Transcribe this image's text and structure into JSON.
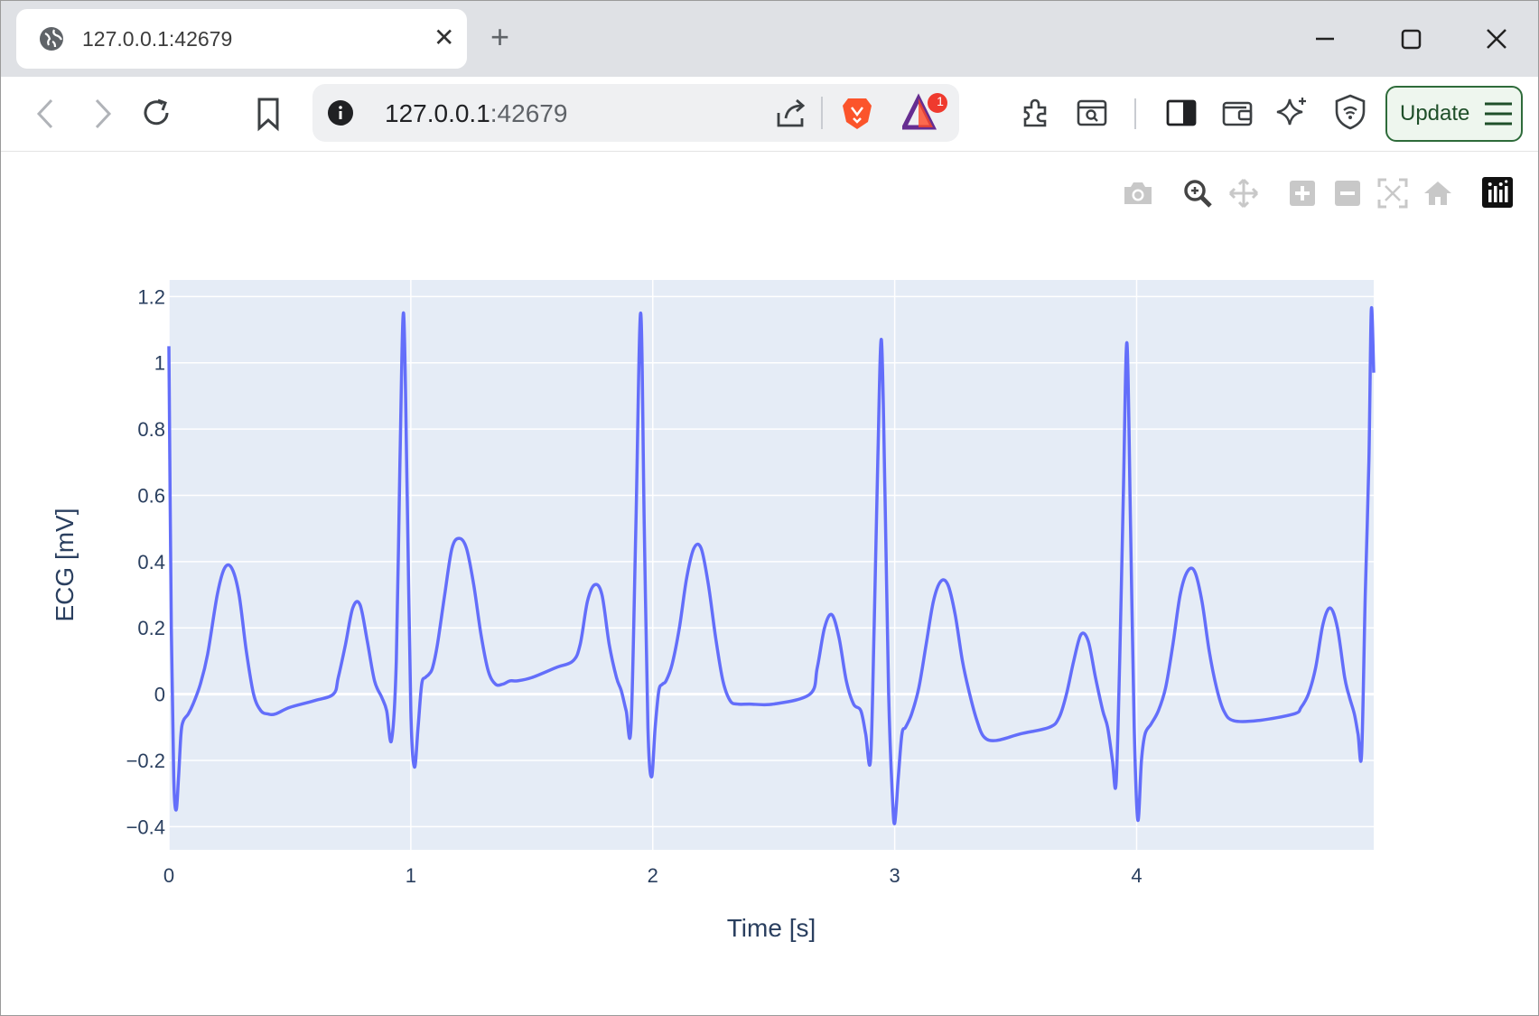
{
  "browser": {
    "tab_title": "127.0.0.1:42679",
    "url_host": "127.0.0.1",
    "url_port": ":42679",
    "notification_count": "1",
    "update_label": "Update"
  },
  "colors": {
    "plot_bg": "#e5ecf6",
    "line": "#636efa",
    "axis_text": "#2a3f5f",
    "grid": "#ffffff"
  },
  "icons": [
    "globe-icon",
    "close-icon",
    "plus-icon",
    "minimize-icon",
    "maximize-icon",
    "window-close-icon",
    "back-icon",
    "forward-icon",
    "reload-icon",
    "bookmark-icon",
    "info-icon",
    "share-icon",
    "brave-lion-icon",
    "rewards-triangle-icon",
    "extensions-icon",
    "leo-search-icon",
    "sidebar-icon",
    "wallet-icon",
    "ai-sparkle-icon",
    "vpn-shield-icon",
    "menu-icon",
    "camera-icon",
    "zoom-icon",
    "pan-icon",
    "zoom-in-icon",
    "zoom-out-icon",
    "autoscale-icon",
    "reset-axes-icon",
    "plotly-logo-icon"
  ],
  "chart_data": {
    "type": "line",
    "xlabel": "Time [s]",
    "ylabel": "ECG [mV]",
    "xlim": [
      0,
      4.98
    ],
    "ylim": [
      -0.47,
      1.25
    ],
    "x_ticks": [
      0,
      1,
      2,
      3,
      4
    ],
    "x_tick_labels": [
      "0",
      "1",
      "2",
      "3",
      "4"
    ],
    "y_ticks": [
      -0.4,
      -0.2,
      0,
      0.2,
      0.4,
      0.6,
      0.8,
      1,
      1.2
    ],
    "y_tick_labels": [
      "−0.4",
      "−0.2",
      "0",
      "0.2",
      "0.4",
      "0.6",
      "0.8",
      "1",
      "1.2"
    ],
    "grid": true,
    "legend": "none",
    "series": [
      {
        "x": [
          0,
          0.01,
          0.02,
          0.03,
          0.04,
          0.05,
          0.06,
          0.08,
          0.1,
          0.13,
          0.16,
          0.2,
          0.23,
          0.26,
          0.29,
          0.32,
          0.35,
          0.38,
          0.41,
          0.44,
          0.5,
          0.6,
          0.68,
          0.7,
          0.73,
          0.76,
          0.79,
          0.82,
          0.85,
          0.88,
          0.9,
          0.92,
          0.94,
          0.955,
          0.97,
          0.985,
          1.0,
          1.015,
          1.03,
          1.045,
          1.06,
          1.075,
          1.09,
          1.11,
          1.14,
          1.17,
          1.2,
          1.23,
          1.26,
          1.29,
          1.32,
          1.35,
          1.38,
          1.41,
          1.44,
          1.5,
          1.6,
          1.67,
          1.7,
          1.73,
          1.76,
          1.79,
          1.82,
          1.85,
          1.87,
          1.89,
          1.91,
          1.93,
          1.95,
          1.965,
          1.98,
          1.995,
          2.01,
          2.025,
          2.04,
          2.055,
          2.08,
          2.11,
          2.14,
          2.17,
          2.2,
          2.23,
          2.26,
          2.29,
          2.32,
          2.35,
          2.4,
          2.5,
          2.65,
          2.68,
          2.71,
          2.74,
          2.77,
          2.8,
          2.83,
          2.86,
          2.88,
          2.9,
          2.915,
          2.93,
          2.945,
          2.96,
          2.975,
          2.99,
          3.0,
          3.015,
          3.03,
          3.045,
          3.07,
          3.1,
          3.13,
          3.16,
          3.19,
          3.22,
          3.25,
          3.28,
          3.31,
          3.34,
          3.37,
          3.42,
          3.52,
          3.64,
          3.68,
          3.71,
          3.74,
          3.77,
          3.8,
          3.83,
          3.86,
          3.88,
          3.9,
          3.915,
          3.93,
          3.945,
          3.96,
          3.975,
          3.99,
          4.005,
          4.02,
          4.035,
          4.06,
          4.09,
          4.12,
          4.15,
          4.18,
          4.21,
          4.24,
          4.27,
          4.3,
          4.33,
          4.36,
          4.4,
          4.5,
          4.65,
          4.68,
          4.71,
          4.74,
          4.77,
          4.8,
          4.83,
          4.86,
          4.88,
          4.9,
          4.915,
          4.93,
          4.945,
          4.96,
          4.97,
          4.98
        ],
        "y": [
          1.05,
          0.2,
          -0.25,
          -0.35,
          -0.25,
          -0.12,
          -0.08,
          -0.06,
          -0.03,
          0.03,
          0.12,
          0.3,
          0.38,
          0.38,
          0.3,
          0.13,
          0.0,
          -0.05,
          -0.06,
          -0.06,
          -0.04,
          -0.02,
          0.0,
          0.05,
          0.15,
          0.26,
          0.27,
          0.16,
          0.04,
          -0.01,
          -0.05,
          -0.14,
          0.1,
          0.7,
          1.15,
          0.6,
          -0.05,
          -0.22,
          -0.1,
          0.03,
          0.05,
          0.06,
          0.08,
          0.15,
          0.3,
          0.44,
          0.47,
          0.44,
          0.33,
          0.18,
          0.07,
          0.03,
          0.03,
          0.04,
          0.04,
          0.05,
          0.08,
          0.1,
          0.15,
          0.28,
          0.33,
          0.3,
          0.15,
          0.05,
          0.01,
          -0.05,
          -0.1,
          0.5,
          1.15,
          0.5,
          -0.1,
          -0.25,
          -0.1,
          0.01,
          0.03,
          0.04,
          0.09,
          0.2,
          0.35,
          0.44,
          0.44,
          0.33,
          0.17,
          0.04,
          -0.02,
          -0.03,
          -0.03,
          -0.03,
          0.0,
          0.08,
          0.2,
          0.24,
          0.17,
          0.04,
          -0.03,
          -0.05,
          -0.12,
          -0.2,
          0.2,
          0.7,
          1.07,
          0.6,
          0.0,
          -0.3,
          -0.39,
          -0.25,
          -0.12,
          -0.1,
          -0.06,
          0.02,
          0.15,
          0.28,
          0.34,
          0.33,
          0.24,
          0.1,
          0.0,
          -0.08,
          -0.13,
          -0.14,
          -0.12,
          -0.1,
          -0.07,
          0.0,
          0.1,
          0.18,
          0.16,
          0.05,
          -0.05,
          -0.1,
          -0.2,
          -0.27,
          0.1,
          0.6,
          1.06,
          0.5,
          -0.1,
          -0.38,
          -0.2,
          -0.12,
          -0.09,
          -0.05,
          0.02,
          0.15,
          0.3,
          0.37,
          0.37,
          0.28,
          0.13,
          0.02,
          -0.05,
          -0.08,
          -0.08,
          -0.06,
          -0.04,
          0.0,
          0.08,
          0.21,
          0.26,
          0.2,
          0.05,
          -0.01,
          -0.06,
          -0.12,
          -0.18,
          0.3,
          0.7,
          1.16,
          0.97
        ]
      }
    ]
  }
}
